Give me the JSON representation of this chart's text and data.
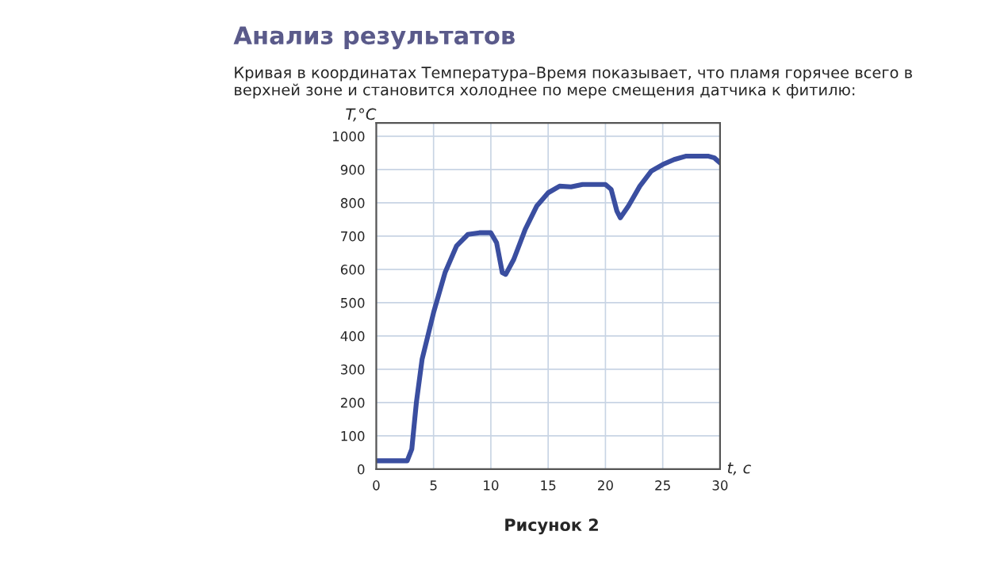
{
  "chart_data": {
    "type": "line",
    "title": "Анализ результатов",
    "subtitle": "Кривая в координатах Температура–Время показывает, что пламя горячее всего в верхней зоне и становится холоднее по мере смещения датчика к фитилю:",
    "xlabel": "t, c",
    "ylabel": "T,°C",
    "annotations": [
      "Рисунок 2"
    ],
    "series": [
      {
        "color": "#3a4ea0",
        "x": [
          0,
          2.7,
          3.1,
          3.5,
          4,
          5,
          6,
          7,
          8,
          9,
          10,
          10.5,
          11,
          11.3,
          12,
          13,
          14,
          15,
          16,
          17,
          18,
          19,
          20,
          20.5,
          21,
          21.3,
          22,
          23,
          24,
          25,
          26,
          27,
          29,
          29.5,
          30
        ],
        "values": [
          25,
          25,
          60,
          200,
          330,
          470,
          590,
          670,
          705,
          710,
          710,
          680,
          590,
          585,
          630,
          720,
          790,
          830,
          850,
          848,
          855,
          855,
          855,
          840,
          775,
          755,
          790,
          850,
          895,
          915,
          930,
          940,
          940,
          935,
          920
        ]
      }
    ],
    "xlim": [
      0,
      30
    ],
    "xticks": [
      0,
      5,
      10,
      15,
      20,
      25,
      30
    ],
    "ylim": [
      0,
      1040
    ],
    "yticks": [
      0,
      100,
      200,
      300,
      400,
      500,
      600,
      700,
      800,
      900,
      1000
    ],
    "grid": true
  }
}
